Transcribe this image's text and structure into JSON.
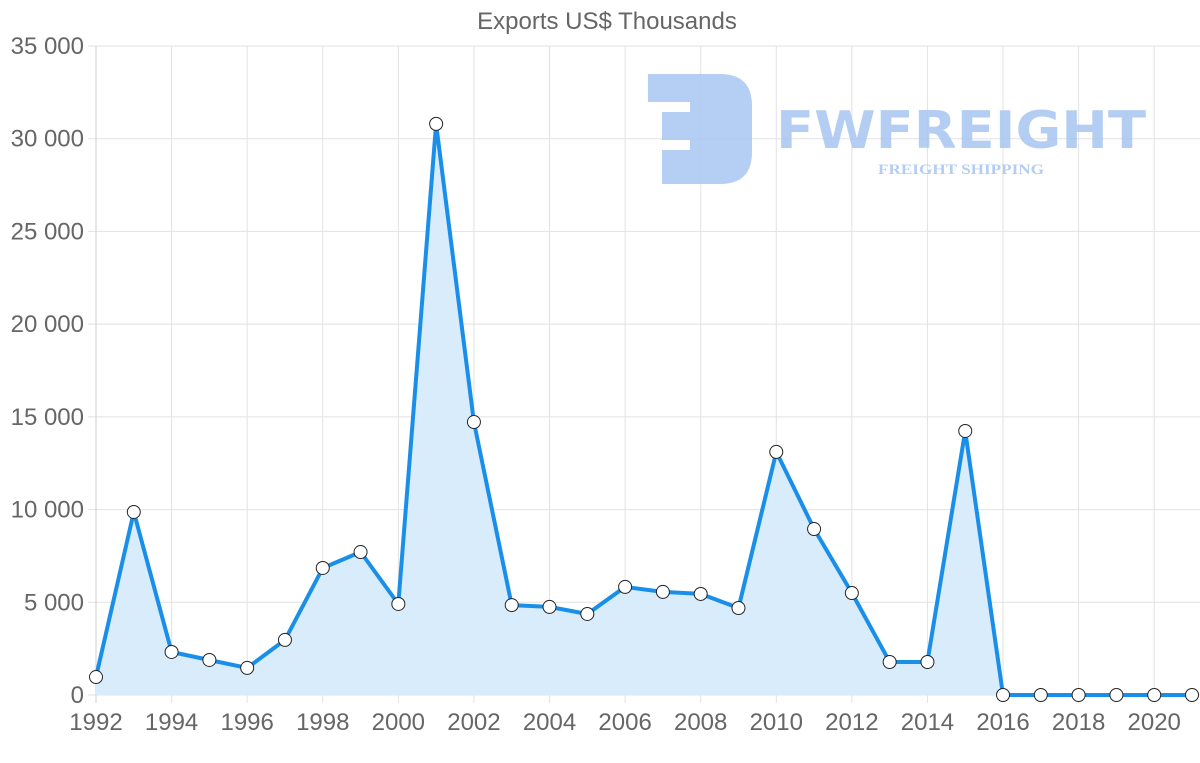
{
  "chart_data": {
    "type": "area",
    "title": "Exports US$ Thousands",
    "xlabel": "",
    "ylabel": "",
    "ylim": [
      0,
      35000
    ],
    "yticks": [
      "0",
      "5 000",
      "10 000",
      "15 000",
      "20 000",
      "25 000",
      "30 000",
      "35 000"
    ],
    "ytick_values": [
      0,
      5000,
      10000,
      15000,
      20000,
      25000,
      30000,
      35000
    ],
    "xticks": [
      "1992",
      "1994",
      "1996",
      "1998",
      "2000",
      "2002",
      "2004",
      "2006",
      "2008",
      "2010",
      "2012",
      "2014",
      "2016",
      "2018",
      "2020"
    ],
    "grid": true,
    "legend": "none",
    "x": [
      1992,
      1993,
      1994,
      1995,
      1996,
      1997,
      1998,
      1999,
      2000,
      2001,
      2002,
      2003,
      2004,
      2005,
      2006,
      2007,
      2008,
      2009,
      2010,
      2011,
      2012,
      2013,
      2014,
      2015,
      2016,
      2017,
      2018,
      2019,
      2020,
      2021
    ],
    "series": [
      {
        "name": "Exports US$ Thousands",
        "color": "#1a8fea",
        "fill": "#d9ecfc",
        "values": [
          970,
          9870,
          2320,
          1890,
          1460,
          2970,
          6850,
          7710,
          4910,
          30800,
          14720,
          4850,
          4750,
          4370,
          5830,
          5560,
          5450,
          4690,
          13110,
          8950,
          5500,
          1780,
          1780,
          14240,
          0,
          0,
          0,
          0,
          0,
          0
        ]
      }
    ]
  },
  "watermark": {
    "brand": "FWFREIGHT",
    "tagline": "FREIGHT SHIPPING",
    "color": "#a8c6f2"
  }
}
